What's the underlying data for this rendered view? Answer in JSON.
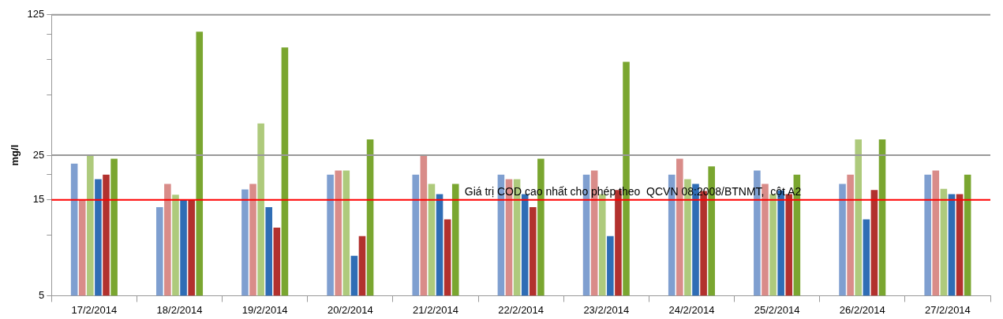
{
  "chart_data": {
    "type": "bar",
    "ylabel": "mg/l",
    "log": true,
    "legend": false,
    "categories": [
      "17/2/2014",
      "18/2/2014",
      "19/2/2014",
      "20/2/2014",
      "21/2/2014",
      "22/2/2014",
      "23/2/2014",
      "24/2/2014",
      "25/2/2014",
      "26/2/2014",
      "27/2/2014"
    ],
    "series": [
      {
        "color": "#7f9fd0",
        "values": [
          22.7,
          13.8,
          16.9,
          20,
          20,
          20,
          20,
          20,
          21,
          18,
          20
        ]
      },
      {
        "color": "#d98c89",
        "values": [
          15,
          18,
          18,
          21,
          25,
          19,
          21,
          24,
          18,
          20,
          21
        ]
      },
      {
        "color": "#aeca7c",
        "values": [
          25,
          15.9,
          36,
          21,
          18,
          19,
          16,
          19,
          16,
          30,
          17
        ]
      },
      {
        "color": "#2f6db5",
        "values": [
          19,
          15,
          13.8,
          7.9,
          16,
          16,
          9.9,
          18,
          16.7,
          12,
          16
        ]
      },
      {
        "color": "#b2312e",
        "values": [
          20,
          15,
          10.9,
          9.9,
          12,
          13.8,
          16.8,
          16.6,
          16,
          16.8,
          16
        ]
      },
      {
        "color": "#7aa630",
        "values": [
          24,
          103,
          86,
          30,
          18,
          24,
          73,
          22,
          20,
          30,
          20
        ]
      }
    ],
    "ylim": [
      5,
      125
    ],
    "yticks": [
      5,
      {
        "value": 10,
        "label": null
      },
      15,
      {
        "value": 20,
        "label": null
      },
      25,
      {
        "value": 50,
        "label": null
      },
      {
        "value": 75,
        "label": null
      },
      {
        "value": 100,
        "label": null
      },
      125
    ],
    "annotations": [
      "Giá trị COD cao nhất cho phép theo  QCVN 08:2008/BTNMT,  cột A2"
    ],
    "ref_lines": [
      {
        "axis": "y",
        "value": 15,
        "color": "#ff0000"
      },
      {
        "axis": "y",
        "value": 25,
        "color": "#999999"
      },
      {
        "axis": "y",
        "value": 125,
        "color": "#999999"
      }
    ]
  }
}
